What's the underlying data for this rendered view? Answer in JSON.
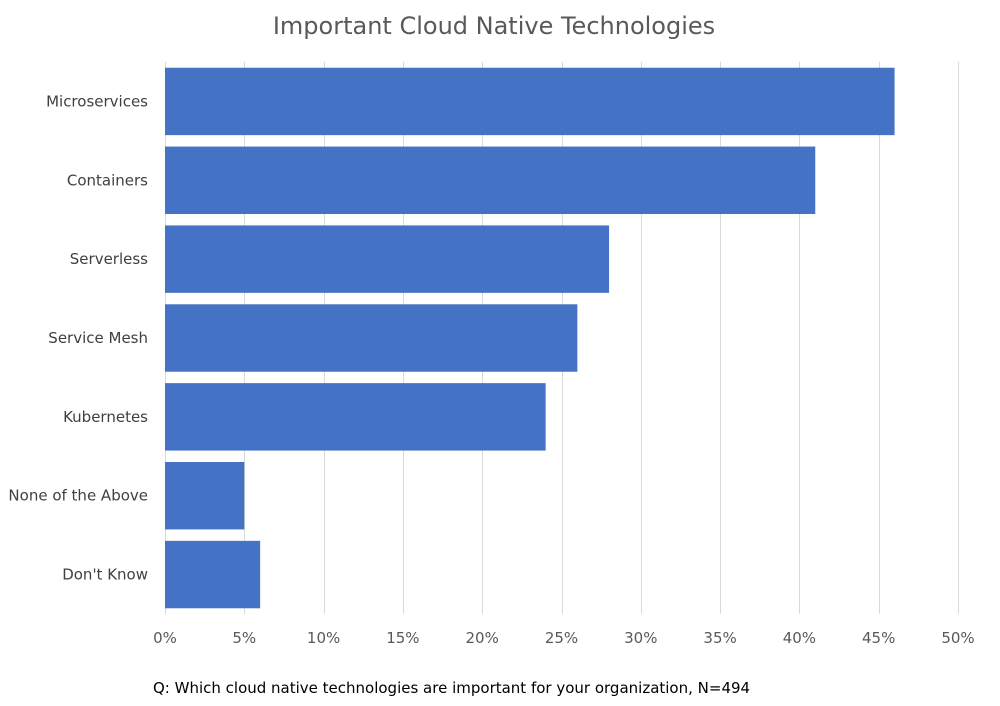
{
  "chart_data": {
    "type": "bar",
    "orientation": "horizontal",
    "title": "Important Cloud Native Technologies",
    "categories": [
      "Microservices",
      "Containers",
      "Serverless",
      "Service Mesh",
      "Kubernetes",
      "None of the Above",
      "Don't Know"
    ],
    "values": [
      46,
      41,
      28,
      26,
      24,
      5,
      6
    ],
    "value_unit": "%",
    "xlim": [
      0,
      50
    ],
    "xticks": [
      0,
      5,
      10,
      15,
      20,
      25,
      30,
      35,
      40,
      45,
      50
    ],
    "xtick_labels": [
      "0%",
      "5%",
      "10%",
      "15%",
      "20%",
      "25%",
      "30%",
      "35%",
      "40%",
      "45%",
      "50%"
    ],
    "xlabel": "",
    "ylabel": "",
    "grid": true,
    "legend": "none",
    "caption": "Q: Which cloud native technologies are important  for your organization, N=494",
    "bar_color": "#4472c4"
  }
}
